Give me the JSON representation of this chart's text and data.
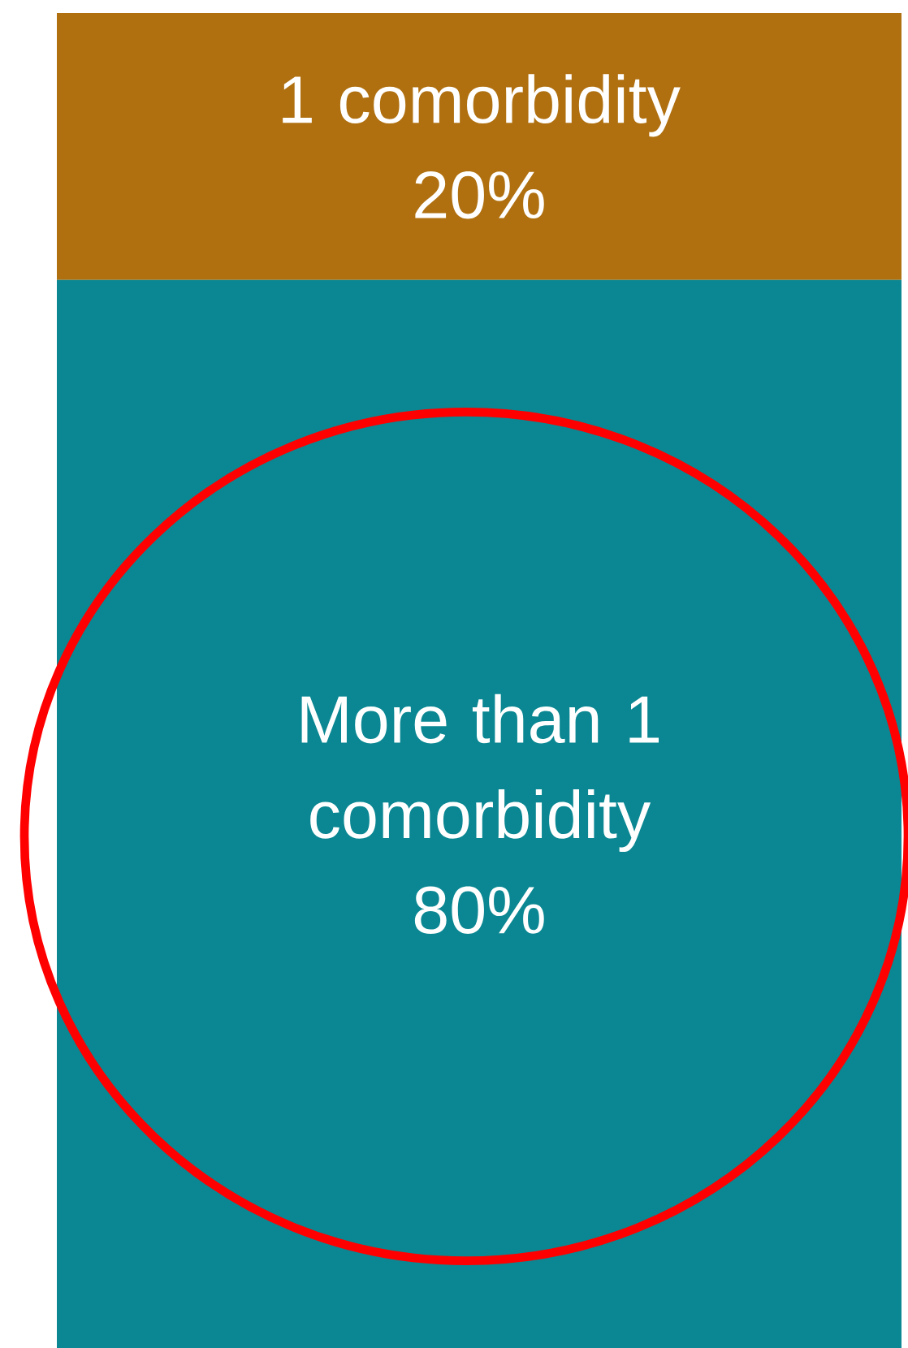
{
  "chart_data": {
    "type": "bar",
    "stacked": true,
    "categories": [
      null
    ],
    "series": [
      {
        "name": "More than 1 comorbidity",
        "color": "#0a8792",
        "values": [
          80
        ],
        "value_labels": [
          "80%"
        ]
      },
      {
        "name": "1 comorbidity",
        "color": "#b07010",
        "values": [
          20
        ],
        "value_labels": [
          "20%"
        ]
      }
    ]
  }
}
